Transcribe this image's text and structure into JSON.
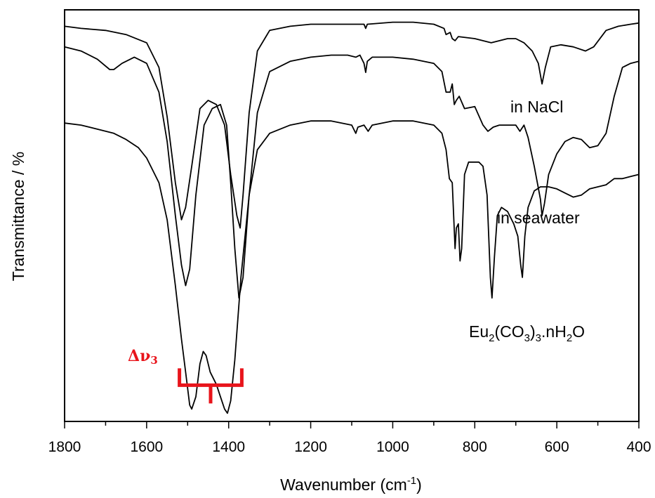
{
  "chart_data": {
    "type": "line",
    "xlabel": {
      "main": "Wavenumber (cm",
      "sup": "-1",
      "tail": ")"
    },
    "ylabel": "Transmittance / %",
    "xlim": [
      1800,
      400
    ],
    "x_reversed": true,
    "y_ticks_shown": false,
    "x_ticks": [
      "1800",
      "1600",
      "1400",
      "1200",
      "1000",
      "800",
      "600",
      "400"
    ],
    "series": [
      {
        "label": "in NaCl",
        "points": [
          [
            1800,
            0.96
          ],
          [
            1760,
            0.955
          ],
          [
            1700,
            0.95
          ],
          [
            1650,
            0.94
          ],
          [
            1600,
            0.92
          ],
          [
            1570,
            0.86
          ],
          [
            1550,
            0.74
          ],
          [
            1530,
            0.58
          ],
          [
            1515,
            0.49
          ],
          [
            1505,
            0.52
          ],
          [
            1490,
            0.62
          ],
          [
            1470,
            0.76
          ],
          [
            1450,
            0.78
          ],
          [
            1430,
            0.77
          ],
          [
            1410,
            0.72
          ],
          [
            1395,
            0.6
          ],
          [
            1380,
            0.5
          ],
          [
            1372,
            0.47
          ],
          [
            1365,
            0.55
          ],
          [
            1350,
            0.75
          ],
          [
            1330,
            0.9
          ],
          [
            1300,
            0.95
          ],
          [
            1250,
            0.96
          ],
          [
            1200,
            0.965
          ],
          [
            1150,
            0.965
          ],
          [
            1100,
            0.965
          ],
          [
            1070,
            0.965
          ],
          [
            1066,
            0.955
          ],
          [
            1062,
            0.965
          ],
          [
            1000,
            0.97
          ],
          [
            950,
            0.97
          ],
          [
            900,
            0.965
          ],
          [
            875,
            0.955
          ],
          [
            870,
            0.94
          ],
          [
            860,
            0.945
          ],
          [
            855,
            0.93
          ],
          [
            848,
            0.925
          ],
          [
            840,
            0.935
          ],
          [
            800,
            0.93
          ],
          [
            760,
            0.92
          ],
          [
            720,
            0.93
          ],
          [
            700,
            0.93
          ],
          [
            680,
            0.92
          ],
          [
            660,
            0.9
          ],
          [
            645,
            0.87
          ],
          [
            636,
            0.82
          ],
          [
            628,
            0.86
          ],
          [
            615,
            0.91
          ],
          [
            590,
            0.915
          ],
          [
            560,
            0.91
          ],
          [
            530,
            0.9
          ],
          [
            510,
            0.91
          ],
          [
            480,
            0.95
          ],
          [
            450,
            0.96
          ],
          [
            420,
            0.965
          ],
          [
            400,
            0.968
          ]
        ]
      },
      {
        "label": "in seawater",
        "points": [
          [
            1800,
            0.91
          ],
          [
            1760,
            0.9
          ],
          [
            1720,
            0.88
          ],
          [
            1690,
            0.855
          ],
          [
            1680,
            0.855
          ],
          [
            1660,
            0.87
          ],
          [
            1630,
            0.885
          ],
          [
            1600,
            0.87
          ],
          [
            1570,
            0.8
          ],
          [
            1550,
            0.68
          ],
          [
            1530,
            0.5
          ],
          [
            1515,
            0.38
          ],
          [
            1505,
            0.33
          ],
          [
            1495,
            0.37
          ],
          [
            1480,
            0.55
          ],
          [
            1460,
            0.72
          ],
          [
            1440,
            0.76
          ],
          [
            1420,
            0.77
          ],
          [
            1405,
            0.72
          ],
          [
            1395,
            0.58
          ],
          [
            1385,
            0.42
          ],
          [
            1375,
            0.3
          ],
          [
            1365,
            0.35
          ],
          [
            1350,
            0.55
          ],
          [
            1330,
            0.75
          ],
          [
            1300,
            0.85
          ],
          [
            1250,
            0.875
          ],
          [
            1200,
            0.885
          ],
          [
            1150,
            0.89
          ],
          [
            1110,
            0.89
          ],
          [
            1090,
            0.885
          ],
          [
            1080,
            0.89
          ],
          [
            1070,
            0.87
          ],
          [
            1066,
            0.848
          ],
          [
            1062,
            0.875
          ],
          [
            1050,
            0.885
          ],
          [
            1000,
            0.885
          ],
          [
            950,
            0.88
          ],
          [
            900,
            0.87
          ],
          [
            880,
            0.85
          ],
          [
            870,
            0.8
          ],
          [
            860,
            0.8
          ],
          [
            855,
            0.82
          ],
          [
            850,
            0.77
          ],
          [
            845,
            0.78
          ],
          [
            838,
            0.79
          ],
          [
            825,
            0.76
          ],
          [
            800,
            0.765
          ],
          [
            780,
            0.72
          ],
          [
            768,
            0.705
          ],
          [
            755,
            0.715
          ],
          [
            740,
            0.72
          ],
          [
            700,
            0.72
          ],
          [
            690,
            0.705
          ],
          [
            680,
            0.72
          ],
          [
            670,
            0.69
          ],
          [
            655,
            0.62
          ],
          [
            640,
            0.54
          ],
          [
            636,
            0.5
          ],
          [
            630,
            0.53
          ],
          [
            620,
            0.6
          ],
          [
            600,
            0.65
          ],
          [
            580,
            0.68
          ],
          [
            560,
            0.69
          ],
          [
            540,
            0.685
          ],
          [
            520,
            0.665
          ],
          [
            500,
            0.67
          ],
          [
            480,
            0.7
          ],
          [
            460,
            0.79
          ],
          [
            440,
            0.86
          ],
          [
            420,
            0.87
          ],
          [
            400,
            0.875
          ]
        ]
      },
      {
        "label": "Eu2(CO3)3.nH2O",
        "points": [
          [
            1800,
            0.725
          ],
          [
            1760,
            0.72
          ],
          [
            1720,
            0.71
          ],
          [
            1680,
            0.7
          ],
          [
            1650,
            0.685
          ],
          [
            1620,
            0.665
          ],
          [
            1600,
            0.64
          ],
          [
            1570,
            0.58
          ],
          [
            1550,
            0.49
          ],
          [
            1530,
            0.33
          ],
          [
            1515,
            0.2
          ],
          [
            1505,
            0.12
          ],
          [
            1495,
            0.04
          ],
          [
            1490,
            0.03
          ],
          [
            1480,
            0.06
          ],
          [
            1470,
            0.14
          ],
          [
            1462,
            0.17
          ],
          [
            1455,
            0.16
          ],
          [
            1445,
            0.12
          ],
          [
            1430,
            0.09
          ],
          [
            1420,
            0.06
          ],
          [
            1410,
            0.03
          ],
          [
            1403,
            0.02
          ],
          [
            1395,
            0.05
          ],
          [
            1385,
            0.15
          ],
          [
            1370,
            0.35
          ],
          [
            1350,
            0.55
          ],
          [
            1330,
            0.66
          ],
          [
            1300,
            0.7
          ],
          [
            1250,
            0.72
          ],
          [
            1200,
            0.73
          ],
          [
            1150,
            0.73
          ],
          [
            1100,
            0.72
          ],
          [
            1090,
            0.7
          ],
          [
            1085,
            0.715
          ],
          [
            1070,
            0.72
          ],
          [
            1060,
            0.705
          ],
          [
            1050,
            0.72
          ],
          [
            1000,
            0.73
          ],
          [
            950,
            0.73
          ],
          [
            900,
            0.72
          ],
          [
            880,
            0.7
          ],
          [
            870,
            0.66
          ],
          [
            862,
            0.59
          ],
          [
            855,
            0.58
          ],
          [
            848,
            0.42
          ],
          [
            845,
            0.47
          ],
          [
            840,
            0.48
          ],
          [
            836,
            0.39
          ],
          [
            832,
            0.42
          ],
          [
            825,
            0.6
          ],
          [
            815,
            0.63
          ],
          [
            800,
            0.63
          ],
          [
            790,
            0.63
          ],
          [
            780,
            0.62
          ],
          [
            770,
            0.55
          ],
          [
            762,
            0.35
          ],
          [
            758,
            0.3
          ],
          [
            752,
            0.4
          ],
          [
            745,
            0.5
          ],
          [
            735,
            0.52
          ],
          [
            720,
            0.51
          ],
          [
            705,
            0.48
          ],
          [
            695,
            0.45
          ],
          [
            688,
            0.38
          ],
          [
            684,
            0.35
          ],
          [
            678,
            0.45
          ],
          [
            670,
            0.52
          ],
          [
            655,
            0.56
          ],
          [
            640,
            0.57
          ],
          [
            620,
            0.57
          ],
          [
            600,
            0.565
          ],
          [
            580,
            0.555
          ],
          [
            560,
            0.545
          ],
          [
            540,
            0.55
          ],
          [
            520,
            0.565
          ],
          [
            500,
            0.57
          ],
          [
            480,
            0.575
          ],
          [
            460,
            0.59
          ],
          [
            440,
            0.59
          ],
          [
            420,
            0.595
          ],
          [
            400,
            0.6
          ]
        ]
      }
    ],
    "annotations": [
      {
        "type": "delta-label",
        "text": "Δν",
        "sub": "3",
        "color": "#e8141b"
      },
      {
        "type": "bracket",
        "x_from": 1520,
        "x_to": 1368,
        "y": 0.088,
        "color": "#e8141b"
      }
    ],
    "series_labels": {
      "nacl": "in NaCl",
      "seawater": "in seawater",
      "eu": {
        "p1": "Eu",
        "s1": "2",
        "p2": "(CO",
        "s2": "3",
        "p3": ")",
        "s3": "3",
        "p4": ".nH",
        "s4": "2",
        "p5": "O"
      }
    }
  }
}
